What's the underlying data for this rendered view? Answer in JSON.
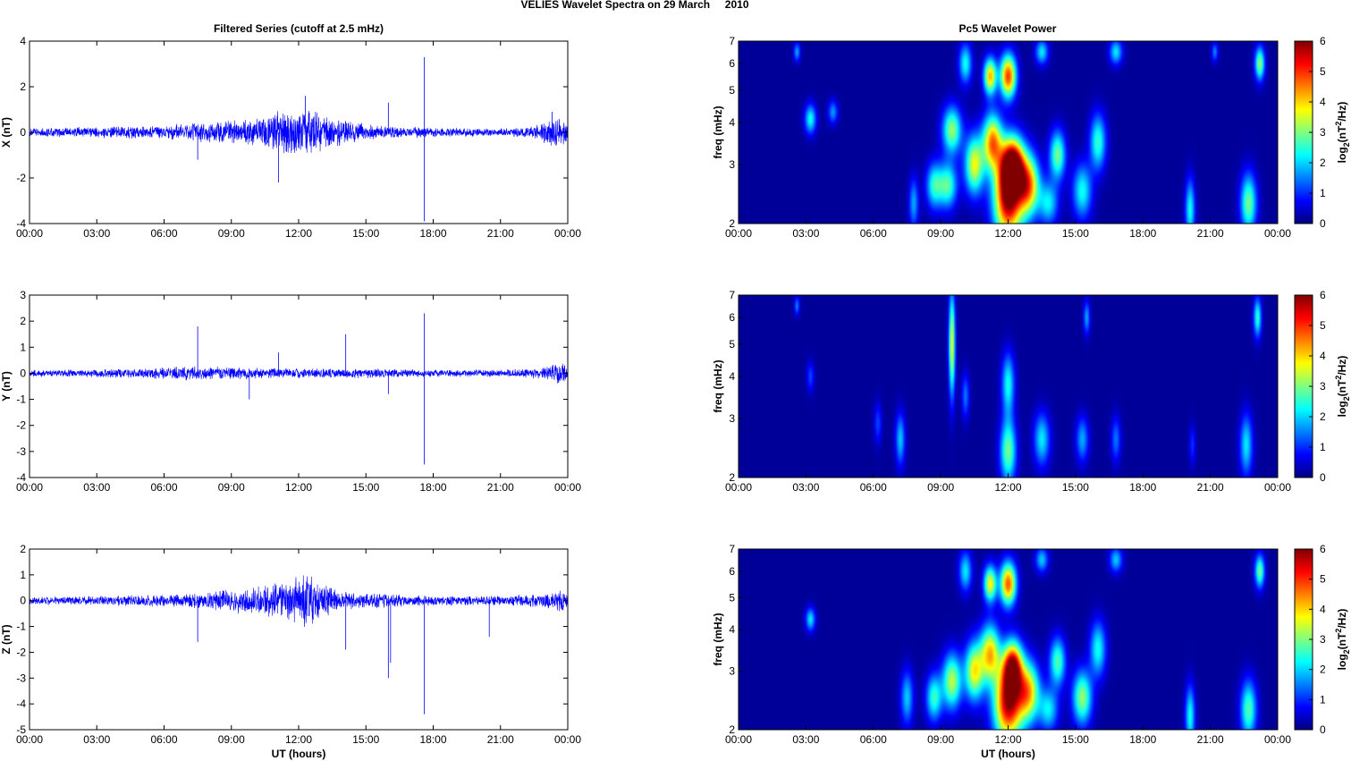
{
  "figure_title": "VELIES Wavelet Spectra on 29 March     2010",
  "left_title": "Filtered Series (cutoff at 2.5 mHz)",
  "right_title": "Pc5 Wavelet Power",
  "bottom_xlabel": "UT (hours)",
  "colors": {
    "trace": "#0000ff",
    "background_power": "#00008f"
  },
  "chart_data": [
    {
      "type": "line",
      "component": "X",
      "ylabel": "X (nT)",
      "xlabel": "",
      "ylim": [
        -4,
        4
      ],
      "yticks": [
        -4,
        -2,
        0,
        2,
        4
      ],
      "xticks": [
        "00:00",
        "03:00",
        "06:00",
        "09:00",
        "12:00",
        "15:00",
        "18:00",
        "21:00",
        "00:00"
      ],
      "xlim_hours": [
        0,
        24
      ],
      "envelope": [
        [
          0,
          0.2
        ],
        [
          2,
          0.25
        ],
        [
          4,
          0.3
        ],
        [
          6,
          0.35
        ],
        [
          8,
          0.5
        ],
        [
          9.5,
          0.6
        ],
        [
          10.5,
          0.8
        ],
        [
          11.5,
          1.1
        ],
        [
          12.3,
          1.3
        ],
        [
          13,
          0.9
        ],
        [
          14,
          0.6
        ],
        [
          15,
          0.4
        ],
        [
          16,
          0.3
        ],
        [
          18,
          0.25
        ],
        [
          20,
          0.2
        ],
        [
          21.5,
          0.2
        ],
        [
          22.5,
          0.3
        ],
        [
          23.5,
          0.8
        ],
        [
          24,
          0.5
        ]
      ],
      "spikes": [
        [
          7.5,
          -1.2
        ],
        [
          11.1,
          -2.2
        ],
        [
          12.3,
          1.6
        ],
        [
          16,
          1.3
        ],
        [
          17.6,
          3.3
        ],
        [
          17.6,
          -3.9
        ],
        [
          23.3,
          0.9
        ]
      ]
    },
    {
      "type": "line",
      "component": "Y",
      "ylabel": "Y (nT)",
      "xlabel": "",
      "ylim": [
        -4,
        3
      ],
      "yticks": [
        -4,
        -3,
        -2,
        -1,
        0,
        1,
        2,
        3
      ],
      "xticks": [
        "00:00",
        "03:00",
        "06:00",
        "09:00",
        "12:00",
        "15:00",
        "18:00",
        "21:00",
        "00:00"
      ],
      "xlim_hours": [
        0,
        24
      ],
      "envelope": [
        [
          0,
          0.15
        ],
        [
          2,
          0.15
        ],
        [
          5,
          0.2
        ],
        [
          7,
          0.3
        ],
        [
          9,
          0.25
        ],
        [
          12,
          0.2
        ],
        [
          15,
          0.2
        ],
        [
          18,
          0.15
        ],
        [
          21,
          0.15
        ],
        [
          23,
          0.25
        ],
        [
          23.8,
          0.5
        ],
        [
          24,
          0.3
        ]
      ],
      "spikes": [
        [
          7.5,
          1.8
        ],
        [
          9.8,
          -1.0
        ],
        [
          11.1,
          0.8
        ],
        [
          14.1,
          1.5
        ],
        [
          16,
          -0.8
        ],
        [
          17.6,
          2.3
        ],
        [
          17.6,
          -3.5
        ]
      ]
    },
    {
      "type": "line",
      "component": "Z",
      "ylabel": "Z (nT)",
      "xlabel": "UT (hours)",
      "ylim": [
        -5,
        2
      ],
      "yticks": [
        -5,
        -4,
        -3,
        -2,
        -1,
        0,
        1,
        2
      ],
      "xticks": [
        "00:00",
        "03:00",
        "06:00",
        "09:00",
        "12:00",
        "15:00",
        "18:00",
        "21:00",
        "00:00"
      ],
      "xlim_hours": [
        0,
        24
      ],
      "envelope": [
        [
          0,
          0.15
        ],
        [
          3,
          0.2
        ],
        [
          6,
          0.25
        ],
        [
          8,
          0.35
        ],
        [
          10,
          0.6
        ],
        [
          11.5,
          0.8
        ],
        [
          12.3,
          1.2
        ],
        [
          13,
          0.7
        ],
        [
          14,
          0.4
        ],
        [
          16,
          0.3
        ],
        [
          18,
          0.2
        ],
        [
          21,
          0.2
        ],
        [
          23,
          0.3
        ],
        [
          23.8,
          0.5
        ],
        [
          24,
          0.3
        ]
      ],
      "spikes": [
        [
          7.5,
          -1.6
        ],
        [
          14.1,
          -1.9
        ],
        [
          16,
          -3.0
        ],
        [
          16.1,
          -2.4
        ],
        [
          17.6,
          -4.4
        ],
        [
          20.5,
          -1.4
        ]
      ]
    },
    {
      "type": "heatmap",
      "component": "X",
      "ylabel": "freq (mHz)",
      "xlabel": "",
      "yscale": "log",
      "ylim": [
        2,
        7
      ],
      "yticks": [
        2,
        3,
        4,
        5,
        6,
        7
      ],
      "xticks": [
        "00:00",
        "03:00",
        "06:00",
        "09:00",
        "12:00",
        "15:00",
        "18:00",
        "21:00",
        "00:00"
      ],
      "xlim_hours": [
        0,
        24
      ],
      "colorbar_label": "log2(nT^2/Hz)",
      "colorbar_range": [
        0,
        6
      ],
      "colorbar_ticks": [
        0,
        1,
        2,
        3,
        4,
        5,
        6
      ],
      "blobs": [
        [
          12,
          2.4,
          0.45,
          0.55,
          5.8
        ],
        [
          12.2,
          3.0,
          0.35,
          0.4,
          5.2
        ],
        [
          11.3,
          3.5,
          0.3,
          0.5,
          4.2
        ],
        [
          12.9,
          2.6,
          0.35,
          0.4,
          4.2
        ],
        [
          12,
          5.5,
          0.25,
          0.6,
          4.8
        ],
        [
          11.2,
          5.5,
          0.2,
          0.5,
          4.0
        ],
        [
          10.5,
          3.0,
          0.3,
          0.45,
          3.5
        ],
        [
          9.5,
          3.8,
          0.3,
          0.45,
          3.0
        ],
        [
          9.3,
          2.6,
          0.3,
          0.3,
          2.6
        ],
        [
          8.7,
          2.6,
          0.25,
          0.3,
          2.2
        ],
        [
          14.2,
          3.2,
          0.25,
          0.4,
          2.8
        ],
        [
          15.3,
          2.5,
          0.3,
          0.35,
          2.2
        ],
        [
          16.0,
          3.5,
          0.25,
          0.5,
          2.4
        ],
        [
          16.8,
          6.5,
          0.2,
          0.4,
          2.0
        ],
        [
          13.8,
          2.3,
          0.3,
          0.25,
          2.0
        ],
        [
          3.2,
          4.1,
          0.18,
          0.3,
          2.2
        ],
        [
          4.2,
          4.3,
          0.15,
          0.25,
          1.5
        ],
        [
          2.6,
          6.5,
          0.1,
          0.3,
          1.6
        ],
        [
          20.1,
          2.2,
          0.15,
          0.35,
          2.2
        ],
        [
          22.7,
          2.3,
          0.25,
          0.35,
          2.8
        ],
        [
          23.2,
          6.0,
          0.15,
          0.5,
          3.0
        ],
        [
          21.2,
          6.5,
          0.1,
          0.3,
          1.4
        ],
        [
          7.8,
          2.3,
          0.15,
          0.3,
          1.6
        ],
        [
          10.1,
          6.0,
          0.2,
          0.6,
          2.2
        ],
        [
          13.5,
          6.5,
          0.2,
          0.4,
          2.0
        ]
      ]
    },
    {
      "type": "heatmap",
      "component": "Y",
      "ylabel": "freq (mHz)",
      "xlabel": "",
      "yscale": "log",
      "ylim": [
        2,
        7
      ],
      "yticks": [
        2,
        3,
        4,
        5,
        6,
        7
      ],
      "xticks": [
        "00:00",
        "03:00",
        "06:00",
        "09:00",
        "12:00",
        "15:00",
        "18:00",
        "21:00",
        "00:00"
      ],
      "xlim_hours": [
        0,
        24
      ],
      "colorbar_label": "log2(nT^2/Hz)",
      "colorbar_range": [
        0,
        6
      ],
      "colorbar_ticks": [
        0,
        1,
        2,
        3,
        4,
        5,
        6
      ],
      "blobs": [
        [
          9.5,
          5.0,
          0.1,
          1.4,
          3.5
        ],
        [
          12,
          2.4,
          0.25,
          0.4,
          2.8
        ],
        [
          12,
          3.8,
          0.2,
          0.6,
          2.2
        ],
        [
          13.5,
          2.6,
          0.25,
          0.35,
          2.0
        ],
        [
          15.3,
          2.6,
          0.2,
          0.3,
          1.6
        ],
        [
          7.2,
          2.6,
          0.15,
          0.35,
          1.8
        ],
        [
          10.1,
          3.5,
          0.12,
          0.4,
          1.3
        ],
        [
          16.8,
          2.6,
          0.15,
          0.3,
          1.3
        ],
        [
          23.1,
          6.0,
          0.12,
          0.6,
          2.4
        ],
        [
          22.6,
          2.5,
          0.2,
          0.4,
          2.0
        ],
        [
          3.2,
          4.0,
          0.12,
          0.3,
          1.0
        ],
        [
          6.2,
          2.9,
          0.12,
          0.3,
          1.0
        ],
        [
          15.5,
          6.0,
          0.1,
          0.5,
          1.6
        ],
        [
          20.2,
          2.5,
          0.1,
          0.25,
          0.9
        ],
        [
          2.6,
          6.5,
          0.08,
          0.3,
          1.4
        ]
      ]
    },
    {
      "type": "heatmap",
      "component": "Z",
      "ylabel": "freq (mHz)",
      "xlabel": "UT (hours)",
      "yscale": "log",
      "ylim": [
        2,
        7
      ],
      "yticks": [
        2,
        3,
        4,
        5,
        6,
        7
      ],
      "xticks": [
        "00:00",
        "03:00",
        "06:00",
        "09:00",
        "12:00",
        "15:00",
        "18:00",
        "21:00",
        "00:00"
      ],
      "xlim_hours": [
        0,
        24
      ],
      "colorbar_label": "log2(nT^2/Hz)",
      "colorbar_range": [
        0,
        6
      ],
      "colorbar_ticks": [
        0,
        1,
        2,
        3,
        4,
        5,
        6
      ],
      "blobs": [
        [
          12,
          2.4,
          0.45,
          0.5,
          5.5
        ],
        [
          12.2,
          3.1,
          0.3,
          0.4,
          4.8
        ],
        [
          11.2,
          3.4,
          0.3,
          0.5,
          3.8
        ],
        [
          12.9,
          2.6,
          0.35,
          0.4,
          3.8
        ],
        [
          12,
          5.5,
          0.25,
          0.6,
          4.6
        ],
        [
          11.2,
          5.5,
          0.2,
          0.5,
          3.6
        ],
        [
          10.5,
          3.0,
          0.3,
          0.45,
          3.6
        ],
        [
          9.5,
          2.8,
          0.3,
          0.4,
          3.2
        ],
        [
          8.7,
          2.5,
          0.25,
          0.3,
          2.4
        ],
        [
          14.2,
          3.2,
          0.25,
          0.4,
          2.6
        ],
        [
          15.3,
          2.5,
          0.3,
          0.35,
          3.0
        ],
        [
          16.0,
          3.5,
          0.25,
          0.5,
          2.2
        ],
        [
          16.8,
          6.5,
          0.2,
          0.4,
          1.8
        ],
        [
          13.8,
          2.3,
          0.3,
          0.25,
          2.0
        ],
        [
          3.2,
          4.3,
          0.15,
          0.25,
          2.0
        ],
        [
          20.1,
          2.2,
          0.15,
          0.35,
          2.2
        ],
        [
          22.7,
          2.3,
          0.25,
          0.35,
          2.6
        ],
        [
          23.2,
          6.0,
          0.15,
          0.5,
          2.8
        ],
        [
          7.5,
          2.5,
          0.2,
          0.35,
          1.8
        ],
        [
          10.1,
          6.0,
          0.2,
          0.6,
          2.0
        ],
        [
          13.5,
          6.5,
          0.2,
          0.4,
          1.8
        ]
      ]
    }
  ]
}
